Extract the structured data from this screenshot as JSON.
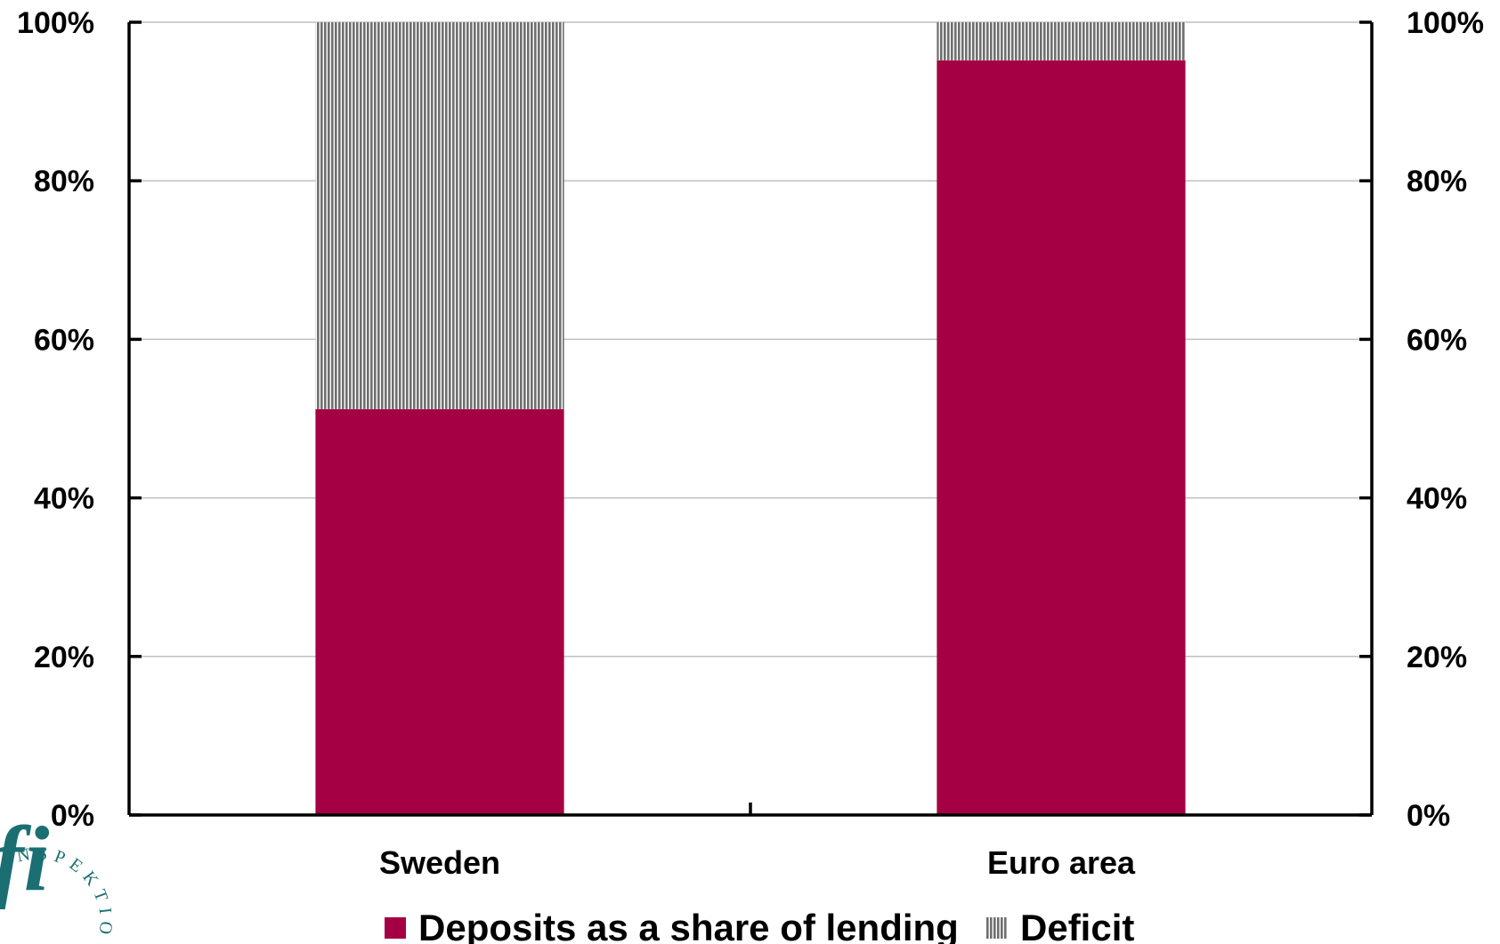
{
  "chart_data": {
    "type": "bar",
    "stacked": true,
    "categories": [
      "Sweden",
      "Euro area"
    ],
    "series": [
      {
        "name": "Deposits as a share of lending",
        "values": [
          51.2,
          95.2
        ],
        "color": "#a50044",
        "pattern": "solid"
      },
      {
        "name": "Deficit",
        "values": [
          48.8,
          4.8
        ],
        "color": "#7f7f7f",
        "pattern": "vertical-stripes"
      }
    ],
    "ylim": [
      0,
      100
    ],
    "yticks": [
      "0%",
      "20%",
      "40%",
      "60%",
      "80%",
      "100%"
    ],
    "secondary_yticks": [
      "0%",
      "20%",
      "40%",
      "60%",
      "80%",
      "100%"
    ],
    "grid": true,
    "legend_position": "bottom"
  },
  "logo": {
    "text": "INSPEKTION",
    "mark": "fi",
    "color": "#1b6f73"
  }
}
